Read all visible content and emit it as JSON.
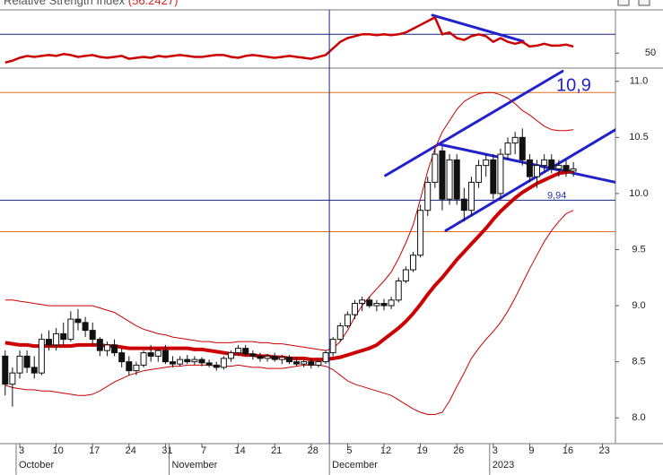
{
  "chart_data": [
    {
      "type": "line",
      "title": "Relative Strength Index",
      "subtitle": "(56.2427)",
      "color": "#cc0000",
      "values": [
        40,
        42,
        45,
        47,
        46,
        47,
        48,
        47,
        49,
        48,
        46,
        47,
        48,
        46,
        45,
        46,
        47,
        44,
        45,
        46,
        45,
        47,
        46,
        47,
        48,
        47,
        46,
        46,
        47,
        48,
        48,
        46,
        45,
        47,
        48,
        47,
        46,
        45,
        46,
        47,
        46,
        45,
        44,
        46,
        48,
        55,
        62,
        66,
        68,
        70,
        70,
        69,
        70,
        69,
        70,
        72,
        76,
        80,
        84,
        88,
        70,
        72,
        66,
        64,
        68,
        70,
        68,
        62,
        66,
        62,
        60,
        62,
        57,
        58,
        60,
        58,
        58,
        59,
        57,
        null,
        null,
        null,
        null,
        null
      ],
      "ylim": [
        35,
        96
      ],
      "yticks": [
        50
      ],
      "hlines": [
        {
          "value": 70,
          "color": "#1a237e"
        }
      ],
      "trendlines": [
        {
          "color": "#2222cc",
          "points": [
            [
              58.65,
              90.3
            ],
            [
              71.1,
              62.6
            ]
          ]
        }
      ]
    },
    {
      "type": "candlestick",
      "categories": [
        null,
        null,
        "3",
        null,
        null,
        null,
        null,
        "10",
        null,
        null,
        null,
        null,
        "17",
        null,
        null,
        null,
        null,
        "24",
        null,
        null,
        null,
        null,
        "31",
        null,
        null,
        null,
        null,
        "7",
        null,
        null,
        null,
        null,
        "14",
        null,
        null,
        null,
        null,
        "21",
        null,
        null,
        null,
        null,
        "28",
        null,
        null,
        null,
        null,
        "5",
        null,
        null,
        null,
        null,
        "12",
        null,
        null,
        null,
        null,
        "19",
        null,
        null,
        null,
        null,
        "26",
        null,
        null,
        null,
        null,
        "3",
        null,
        null,
        null,
        null,
        "9",
        null,
        null,
        null,
        null,
        "16",
        null,
        null,
        null,
        null,
        "23",
        null
      ],
      "months": [
        {
          "name": "October",
          "start": 2
        },
        {
          "name": "November",
          "start": 23
        },
        {
          "name": "December",
          "start": 45
        },
        {
          "name": "2023",
          "start": 67
        }
      ],
      "open": [
        8.55,
        8.3,
        8.4,
        8.55,
        8.45,
        8.4,
        8.7,
        8.65,
        8.75,
        8.7,
        8.88,
        8.85,
        8.78,
        8.7,
        8.6,
        8.65,
        8.58,
        8.5,
        8.42,
        8.47,
        8.58,
        8.55,
        8.6,
        8.5,
        8.48,
        8.52,
        8.5,
        8.52,
        8.49,
        8.47,
        8.45,
        8.53,
        8.58,
        8.62,
        8.57,
        8.55,
        8.53,
        8.55,
        8.52,
        8.54,
        8.5,
        8.48,
        8.5,
        8.47,
        8.5,
        8.58,
        8.7,
        8.82,
        8.92,
        9.02,
        9.05,
        9.0,
        9.02,
        9.0,
        9.05,
        9.22,
        9.32,
        9.45,
        9.85,
        10.1,
        10.38,
        9.95,
        10.3,
        9.95,
        9.85,
        10.1,
        10.25,
        10.3,
        10.0,
        10.35,
        10.45,
        10.5,
        10.3,
        10.15,
        10.25,
        10.3,
        10.22,
        10.25,
        10.2,
        null,
        null,
        null,
        null,
        null
      ],
      "high": [
        8.6,
        8.45,
        8.6,
        8.6,
        8.55,
        8.75,
        8.78,
        8.8,
        8.85,
        8.95,
        8.97,
        8.9,
        8.85,
        8.72,
        8.68,
        8.7,
        8.62,
        8.55,
        8.5,
        8.6,
        8.65,
        8.62,
        8.65,
        8.55,
        8.55,
        8.56,
        8.55,
        8.54,
        8.52,
        8.5,
        8.55,
        8.6,
        8.65,
        8.65,
        8.6,
        8.58,
        8.57,
        8.58,
        8.56,
        8.56,
        8.54,
        8.52,
        8.53,
        8.52,
        8.6,
        8.72,
        8.85,
        8.95,
        9.05,
        9.08,
        9.08,
        9.05,
        9.06,
        9.08,
        9.25,
        9.35,
        9.48,
        9.9,
        10.15,
        10.4,
        10.42,
        10.35,
        10.35,
        10.05,
        10.15,
        10.3,
        10.35,
        10.35,
        10.4,
        10.5,
        10.55,
        10.58,
        10.35,
        10.3,
        10.35,
        10.35,
        10.3,
        10.3,
        10.28,
        null,
        null,
        null,
        null,
        null
      ],
      "low": [
        8.2,
        8.1,
        8.35,
        8.4,
        8.35,
        8.38,
        8.6,
        8.6,
        8.65,
        8.68,
        8.78,
        8.72,
        8.65,
        8.55,
        8.55,
        8.55,
        8.45,
        8.38,
        8.38,
        8.45,
        8.5,
        8.5,
        8.48,
        8.45,
        8.46,
        8.48,
        8.47,
        8.46,
        8.45,
        8.42,
        8.43,
        8.5,
        8.55,
        8.55,
        8.52,
        8.5,
        8.5,
        8.5,
        8.48,
        8.48,
        8.46,
        8.45,
        8.44,
        8.45,
        8.48,
        8.55,
        8.68,
        8.8,
        8.88,
        8.95,
        8.98,
        8.95,
        8.96,
        8.97,
        9.03,
        9.2,
        9.3,
        9.43,
        9.8,
        10.05,
        9.85,
        9.9,
        9.9,
        9.75,
        9.8,
        10.05,
        10.15,
        9.95,
        9.95,
        10.3,
        10.35,
        10.25,
        10.1,
        10.05,
        10.2,
        10.18,
        10.15,
        10.15,
        10.15,
        null,
        null,
        null,
        null,
        null
      ],
      "close": [
        8.3,
        8.4,
        8.55,
        8.45,
        8.4,
        8.7,
        8.65,
        8.75,
        8.7,
        8.88,
        8.85,
        8.78,
        8.7,
        8.6,
        8.65,
        8.58,
        8.5,
        8.42,
        8.47,
        8.58,
        8.55,
        8.6,
        8.5,
        8.48,
        8.52,
        8.5,
        8.52,
        8.49,
        8.47,
        8.45,
        8.53,
        8.58,
        8.62,
        8.57,
        8.55,
        8.53,
        8.55,
        8.52,
        8.54,
        8.5,
        8.48,
        8.5,
        8.47,
        8.5,
        8.58,
        8.7,
        8.82,
        8.92,
        9.02,
        9.05,
        9.0,
        9.02,
        9.0,
        9.05,
        9.22,
        9.32,
        9.45,
        9.85,
        10.1,
        10.35,
        9.95,
        10.3,
        9.95,
        9.85,
        10.1,
        10.25,
        10.3,
        10.0,
        10.35,
        10.45,
        10.5,
        10.3,
        10.15,
        10.25,
        10.3,
        10.22,
        10.25,
        10.2,
        10.22,
        null,
        null,
        null,
        null,
        null
      ],
      "overlays": [
        {
          "color": "#cc0000",
          "line_width": 4,
          "values": [
            8.67,
            8.66,
            8.65,
            8.65,
            8.64,
            8.64,
            8.64,
            8.64,
            8.64,
            8.64,
            8.65,
            8.65,
            8.65,
            8.65,
            8.64,
            8.64,
            8.63,
            8.62,
            8.62,
            8.62,
            8.62,
            8.62,
            8.62,
            8.62,
            8.62,
            8.62,
            8.61,
            8.61,
            8.6,
            8.59,
            8.58,
            8.57,
            8.57,
            8.56,
            8.56,
            8.55,
            8.55,
            8.54,
            8.54,
            8.53,
            8.53,
            8.53,
            8.52,
            8.52,
            8.52,
            8.53,
            8.54,
            8.56,
            8.58,
            8.6,
            8.62,
            8.65,
            8.7,
            8.75,
            8.8,
            8.86,
            8.93,
            9.01,
            9.1,
            9.18,
            9.25,
            9.33,
            9.41,
            9.48,
            9.55,
            9.62,
            9.69,
            9.77,
            9.84,
            9.9,
            9.96,
            10.01,
            10.05,
            10.09,
            10.12,
            10.15,
            10.18,
            10.19,
            10.2,
            null,
            null,
            null,
            null,
            null
          ]
        },
        {
          "color": "#cc0000",
          "line_width": 1,
          "values": [
            9.05,
            9.05,
            9.04,
            9.03,
            9.02,
            9.01,
            9.0,
            9.0,
            9.0,
            9.0,
            9.0,
            9.0,
            9.0,
            8.98,
            8.96,
            8.94,
            8.9,
            8.86,
            8.82,
            8.79,
            8.77,
            8.75,
            8.74,
            8.72,
            8.71,
            8.7,
            8.69,
            8.68,
            8.68,
            8.67,
            8.67,
            8.67,
            8.68,
            8.68,
            8.68,
            8.67,
            8.67,
            8.66,
            8.66,
            8.65,
            8.64,
            8.63,
            8.62,
            8.61,
            8.6,
            8.62,
            8.68,
            8.78,
            8.9,
            9.0,
            9.08,
            9.15,
            9.22,
            9.3,
            9.42,
            9.56,
            9.72,
            9.95,
            10.2,
            10.4,
            10.55,
            10.65,
            10.75,
            10.82,
            10.86,
            10.89,
            10.9,
            10.9,
            10.88,
            10.85,
            10.8,
            10.74,
            10.7,
            10.65,
            10.6,
            10.57,
            10.56,
            10.56,
            10.57,
            null,
            null,
            null,
            null,
            null
          ]
        },
        {
          "color": "#cc0000",
          "line_width": 1,
          "values": [
            8.29,
            8.27,
            8.26,
            8.25,
            8.25,
            8.24,
            8.24,
            8.23,
            8.22,
            8.21,
            8.2,
            8.2,
            8.21,
            8.24,
            8.28,
            8.32,
            8.35,
            8.38,
            8.4,
            8.42,
            8.43,
            8.44,
            8.45,
            8.46,
            8.46,
            8.47,
            8.47,
            8.47,
            8.47,
            8.46,
            8.46,
            8.46,
            8.47,
            8.46,
            8.45,
            8.45,
            8.44,
            8.44,
            8.44,
            8.45,
            8.46,
            8.47,
            8.47,
            8.47,
            8.46,
            8.43,
            8.38,
            8.33,
            8.3,
            8.28,
            8.26,
            8.24,
            8.22,
            8.2,
            8.16,
            8.12,
            8.08,
            8.05,
            8.03,
            8.03,
            8.05,
            8.15,
            8.28,
            8.4,
            8.53,
            8.62,
            8.7,
            8.77,
            8.85,
            8.95,
            9.07,
            9.2,
            9.33,
            9.45,
            9.57,
            9.67,
            9.75,
            9.82,
            9.85,
            null,
            null,
            null,
            null,
            null
          ]
        }
      ],
      "ylim": [
        7.77,
        11.11
      ],
      "yticks": [
        {
          "value": 8,
          "label": "8.0"
        },
        8.5,
        {
          "value": 9,
          "label": "9.0"
        },
        9.5,
        {
          "value": 10,
          "label": "10.0"
        },
        10.5,
        {
          "value": 11,
          "label": "11.0"
        }
      ],
      "hlines": [
        {
          "value": 10.9,
          "color": "#e07020",
          "label": "10,9"
        },
        {
          "value": 9.94,
          "color": "#1a237e",
          "label": "9,94"
        },
        {
          "value": 9.66,
          "color": "#e07020"
        }
      ],
      "vline": 44.5,
      "trendlines": [
        {
          "color": "#2222cc",
          "points": [
            [
              52.2,
              10.16
            ],
            [
              76.5,
              11.09
            ]
          ]
        },
        {
          "color": "#2222cc",
          "points": [
            [
              60.5,
              9.67
            ],
            [
              83.8,
              10.57
            ]
          ]
        },
        {
          "color": "#2222cc",
          "points": [
            [
              59.5,
              10.44
            ],
            [
              83.8,
              10.1
            ]
          ]
        }
      ]
    }
  ]
}
